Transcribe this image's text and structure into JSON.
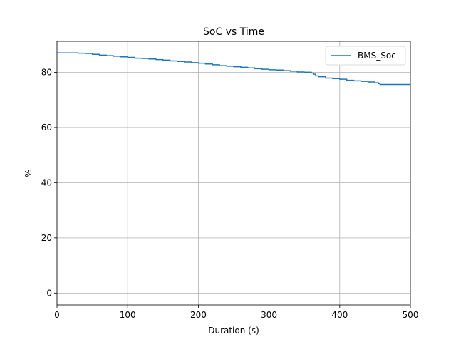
{
  "chart_data": {
    "type": "line",
    "title": "SoC vs Time",
    "xlabel": "Duration (s)",
    "ylabel": "%",
    "xlim": [
      0,
      500
    ],
    "ylim": [
      -4.3,
      91.2
    ],
    "xticks": [
      0,
      100,
      200,
      300,
      400,
      500
    ],
    "yticks": [
      0,
      20,
      40,
      60,
      80
    ],
    "grid": true,
    "legend_position": "top-right",
    "series": [
      {
        "name": "BMS_Soc",
        "color": "#1f77b4",
        "x": [
          0,
          20,
          30,
          40,
          50,
          60,
          70,
          80,
          90,
          100,
          110,
          120,
          130,
          140,
          150,
          160,
          170,
          180,
          190,
          200,
          210,
          220,
          230,
          240,
          250,
          260,
          270,
          280,
          290,
          300,
          310,
          320,
          330,
          340,
          350,
          360,
          363,
          366,
          370,
          380,
          390,
          400,
          410,
          420,
          430,
          440,
          450,
          455,
          457,
          460,
          470,
          480,
          490,
          500
        ],
        "y": [
          87.0,
          87.0,
          86.9,
          86.8,
          86.5,
          86.2,
          86.0,
          85.8,
          85.6,
          85.4,
          85.1,
          85.0,
          84.8,
          84.6,
          84.4,
          84.1,
          83.9,
          83.7,
          83.5,
          83.3,
          83.0,
          82.7,
          82.4,
          82.2,
          82.0,
          81.8,
          81.6,
          81.3,
          81.1,
          80.9,
          80.8,
          80.6,
          80.4,
          80.1,
          80.0,
          79.7,
          79.3,
          78.7,
          78.4,
          77.9,
          77.7,
          77.5,
          77.1,
          76.9,
          76.7,
          76.5,
          76.2,
          75.9,
          75.6,
          75.6,
          75.6,
          75.6,
          75.6,
          75.6
        ]
      }
    ]
  }
}
